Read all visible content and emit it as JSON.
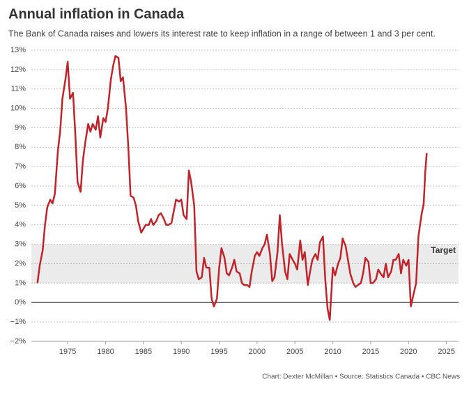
{
  "chart_data": {
    "type": "line",
    "title": "Annual inflation in Canada",
    "subtitle": "The Bank of Canada raises and lowers its interest rate to keep inflation in a range of between 1 and 3 per cent.",
    "footer": "Chart: Dexter McMillan • Source: Statistics Canada • CBC News",
    "color": "#c0232a",
    "grid": true,
    "target": {
      "label": "Target",
      "range": [
        1,
        3
      ]
    },
    "xlim": [
      1970.2,
      2026.6
    ],
    "ylim": [
      -2,
      13
    ],
    "xticks": [
      1975,
      1980,
      1985,
      1990,
      1995,
      2000,
      2005,
      2010,
      2015,
      2020,
      2025
    ],
    "yticks": [
      {
        "value": -2,
        "label": "−2%"
      },
      {
        "value": -1,
        "label": "−1%"
      },
      {
        "value": 0,
        "label": "0%"
      },
      {
        "value": 1,
        "label": "1%"
      },
      {
        "value": 2,
        "label": "2%"
      },
      {
        "value": 3,
        "label": "3%"
      },
      {
        "value": 4,
        "label": "4%"
      },
      {
        "value": 5,
        "label": "5%"
      },
      {
        "value": 6,
        "label": "6%"
      },
      {
        "value": 7,
        "label": "7%"
      },
      {
        "value": 8,
        "label": "8%"
      },
      {
        "value": 9,
        "label": "9%"
      },
      {
        "value": 10,
        "label": "10%"
      },
      {
        "value": 11,
        "label": "11%"
      },
      {
        "value": 12,
        "label": "12%"
      },
      {
        "value": 13,
        "label": "13%"
      }
    ],
    "x": [
      1971.0,
      1971.3,
      1971.7,
      1972.0,
      1972.3,
      1972.7,
      1973.0,
      1973.3,
      1973.7,
      1974.0,
      1974.3,
      1974.7,
      1975.0,
      1975.3,
      1975.7,
      1976.0,
      1976.3,
      1976.7,
      1977.0,
      1977.3,
      1977.7,
      1978.0,
      1978.3,
      1978.7,
      1979.0,
      1979.3,
      1979.7,
      1980.0,
      1980.3,
      1980.7,
      1981.0,
      1981.3,
      1981.7,
      1982.0,
      1982.3,
      1982.7,
      1983.0,
      1983.3,
      1983.7,
      1984.0,
      1984.3,
      1984.7,
      1985.0,
      1985.3,
      1985.7,
      1986.0,
      1986.3,
      1986.7,
      1987.0,
      1987.3,
      1987.7,
      1988.0,
      1988.3,
      1988.7,
      1989.0,
      1989.3,
      1989.7,
      1990.0,
      1990.3,
      1990.7,
      1991.0,
      1991.3,
      1991.7,
      1992.0,
      1992.3,
      1992.7,
      1993.0,
      1993.3,
      1993.7,
      1994.0,
      1994.3,
      1994.7,
      1995.0,
      1995.3,
      1995.7,
      1996.0,
      1996.3,
      1996.7,
      1997.0,
      1997.3,
      1997.7,
      1998.0,
      1998.3,
      1998.7,
      1999.0,
      1999.3,
      1999.7,
      2000.0,
      2000.3,
      2000.7,
      2001.0,
      2001.3,
      2001.7,
      2002.0,
      2002.3,
      2002.7,
      2003.0,
      2003.3,
      2003.7,
      2004.0,
      2004.3,
      2004.7,
      2005.0,
      2005.3,
      2005.7,
      2006.0,
      2006.3,
      2006.7,
      2007.0,
      2007.3,
      2007.7,
      2008.0,
      2008.3,
      2008.7,
      2009.0,
      2009.3,
      2009.6,
      2010.0,
      2010.3,
      2010.7,
      2011.0,
      2011.3,
      2011.7,
      2012.0,
      2012.3,
      2012.7,
      2013.0,
      2013.3,
      2013.7,
      2014.0,
      2014.3,
      2014.7,
      2015.0,
      2015.3,
      2015.7,
      2016.0,
      2016.3,
      2016.7,
      2017.0,
      2017.3,
      2017.7,
      2018.0,
      2018.3,
      2018.7,
      2019.0,
      2019.3,
      2019.7,
      2020.0,
      2020.3,
      2020.7,
      2021.0,
      2021.3,
      2021.7,
      2022.0,
      2022.2,
      2022.4
    ],
    "values": [
      1.0,
      1.9,
      2.7,
      4.0,
      4.9,
      5.3,
      5.1,
      5.6,
      7.8,
      8.8,
      10.5,
      11.5,
      12.4,
      10.5,
      10.8,
      8.7,
      6.2,
      5.7,
      7.3,
      8.2,
      9.2,
      8.8,
      9.2,
      8.9,
      9.6,
      8.5,
      9.5,
      9.3,
      10.0,
      11.5,
      12.2,
      12.7,
      12.6,
      11.4,
      11.6,
      10.0,
      8.0,
      5.5,
      5.4,
      5.0,
      4.2,
      3.6,
      3.8,
      4.0,
      4.0,
      4.3,
      4.0,
      4.2,
      4.5,
      4.6,
      4.3,
      4.0,
      4.0,
      4.1,
      4.7,
      5.3,
      5.2,
      5.3,
      4.5,
      4.3,
      6.8,
      6.2,
      5.0,
      1.6,
      1.2,
      1.3,
      2.3,
      1.8,
      1.8,
      0.2,
      -0.2,
      0.2,
      1.8,
      2.8,
      2.3,
      1.5,
      1.4,
      1.8,
      2.2,
      1.6,
      1.5,
      1.0,
      0.9,
      0.9,
      0.8,
      1.6,
      2.4,
      2.6,
      2.4,
      2.8,
      3.0,
      3.5,
      2.5,
      1.1,
      1.3,
      2.6,
      4.5,
      3.0,
      1.6,
      1.2,
      2.5,
      2.2,
      2.0,
      1.7,
      3.2,
      2.2,
      2.6,
      0.9,
      1.6,
      2.2,
      2.5,
      2.2,
      3.1,
      3.4,
      1.2,
      -0.3,
      -0.9,
      1.8,
      1.4,
      2.0,
      2.3,
      3.3,
      2.9,
      2.2,
      1.5,
      1.0,
      0.8,
      0.9,
      1.0,
      1.5,
      2.3,
      2.1,
      1.0,
      1.0,
      1.2,
      1.7,
      1.5,
      1.3,
      2.0,
      1.3,
      1.6,
      2.2,
      2.2,
      2.5,
      1.5,
      2.2,
      1.9,
      2.2,
      -0.2,
      0.5,
      1.0,
      3.4,
      4.5,
      5.1,
      6.7,
      7.7
    ]
  }
}
